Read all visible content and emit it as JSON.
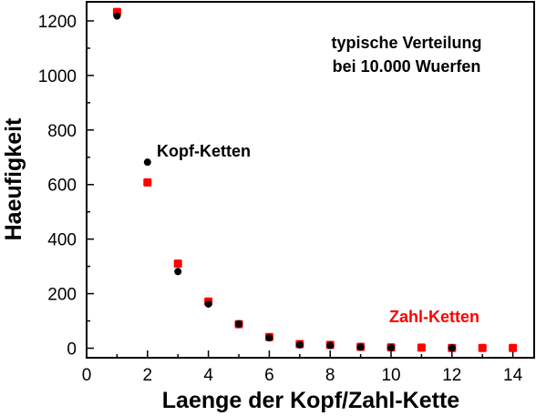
{
  "chart_data": {
    "type": "scatter",
    "xlabel": "Laenge der Kopf/Zahl-Kette",
    "ylabel": "Haeufigkeit",
    "xlim": [
      0,
      14.7
    ],
    "ylim": [
      -35,
      1270
    ],
    "xticks": [
      0,
      2,
      4,
      6,
      8,
      10,
      12,
      14
    ],
    "yticks": [
      0,
      200,
      400,
      600,
      800,
      1000,
      1200
    ],
    "grid": false,
    "legend": "none",
    "annotations": {
      "info_line1": "typische Verteilung",
      "info_line2": "bei 10.000 Wuerfen"
    },
    "series": [
      {
        "name": "Zahl-Ketten",
        "color": "#ff0000",
        "marker": "square",
        "x": [
          1,
          2,
          3,
          4,
          5,
          6,
          7,
          8,
          9,
          10,
          11,
          12,
          13,
          14
        ],
        "y": [
          1233,
          608,
          310,
          171,
          88,
          41,
          15,
          12,
          5,
          3,
          2,
          1,
          1,
          1
        ]
      },
      {
        "name": "Kopf-Ketten",
        "color": "#000000",
        "marker": "circle",
        "x": [
          1,
          2,
          3,
          4,
          5,
          6,
          7,
          8,
          9,
          10,
          12
        ],
        "y": [
          1218,
          682,
          281,
          162,
          89,
          38,
          12,
          10,
          4,
          2,
          1
        ]
      }
    ]
  }
}
